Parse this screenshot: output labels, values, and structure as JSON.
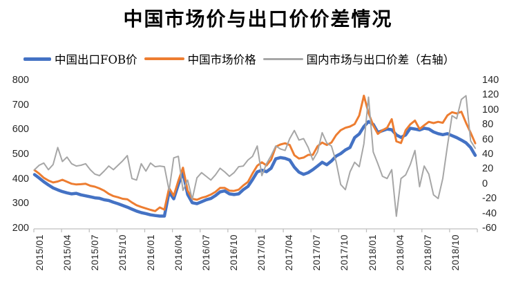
{
  "title": "中国市场价与出口价价差情况",
  "legend": {
    "items": [
      {
        "label": "中国出口FOB价",
        "color": "#4472C4",
        "swatch_w": 40,
        "swatch_h": 5
      },
      {
        "label": "中国市场价格",
        "color": "#ED7D31",
        "swatch_w": 58,
        "swatch_h": 3.5
      },
      {
        "label": "国内市场与出口价差（右轴）",
        "color": "#A6A6A6",
        "swatch_w": 58,
        "swatch_h": 3
      }
    ]
  },
  "colors": {
    "background": "#FFFFFF",
    "axis_line": "#BFBFBF",
    "tick_text": "#262626",
    "blue_series": "#4472C4",
    "orange_series": "#ED7D31",
    "gray_series": "#A6A6A6"
  },
  "chart_data": {
    "type": "line",
    "title": "中国市场价与出口价价差情况",
    "grid": "off",
    "legend_position": "top",
    "x_axis": {
      "start": "2015/01",
      "end": "2018/12",
      "sampling": "2 points per month, estimated from weekly series",
      "tick_labels": [
        "2015/01",
        "2015/04",
        "2015/07",
        "2015/10",
        "2016/01",
        "2016/04",
        "2016/07",
        "2016/10",
        "2017/01",
        "2017/04",
        "2017/07",
        "2017/10",
        "2018/01",
        "2018/04",
        "2018/07",
        "2018/10"
      ]
    },
    "y_axis_left": {
      "min": 200,
      "max": 800,
      "step": 100,
      "ticks": [
        800,
        700,
        600,
        500,
        400,
        300,
        200
      ]
    },
    "y_axis_right": {
      "min": -60,
      "max": 140,
      "step": 20,
      "ticks": [
        140,
        120,
        100,
        80,
        60,
        40,
        20,
        0,
        -20,
        -40,
        -60
      ]
    },
    "series": [
      {
        "name": "中国出口FOB价",
        "axis": "left",
        "color": "#4472C4",
        "stroke_width": 4.5,
        "values": [
          420,
          406,
          391,
          378,
          366,
          358,
          351,
          346,
          342,
          344,
          338,
          334,
          330,
          326,
          324,
          318,
          315,
          308,
          302,
          295,
          288,
          280,
          272,
          266,
          262,
          257,
          254,
          252,
          252,
          350,
          322,
          380,
          430,
          340,
          306,
          302,
          310,
          318,
          323,
          335,
          350,
          354,
          342,
          339,
          342,
          359,
          372,
          400,
          431,
          438,
          432,
          446,
          484,
          489,
          486,
          479,
          450,
          430,
          421,
          428,
          440,
          455,
          470,
          460,
          475,
          495,
          505,
          520,
          530,
          570,
          585,
          615,
          635,
          624,
          591,
          598,
          605,
          602,
          581,
          571,
          581,
          608,
          605,
          601,
          608,
          605,
          593,
          586,
          582,
          586,
          578,
          570,
          560,
          549,
          530,
          498
        ]
      },
      {
        "name": "中国市场价格",
        "axis": "left",
        "color": "#ED7D31",
        "stroke_width": 3,
        "values": [
          438,
          424,
          407,
          396,
          388,
          392,
          399,
          391,
          383,
          380,
          381,
          383,
          375,
          371,
          364,
          355,
          342,
          333,
          328,
          322,
          320,
          307,
          296,
          289,
          283,
          277,
          272,
          287,
          278,
          365,
          334,
          395,
          448,
          355,
          322,
          318,
          326,
          331,
          339,
          350,
          366,
          366,
          355,
          354,
          359,
          376,
          390,
          425,
          456,
          470,
          457,
          480,
          533,
          542,
          547,
          540,
          499,
          485,
          489,
          500,
          500,
          535,
          550,
          540,
          550,
          580,
          600,
          610,
          615,
          625,
          660,
          740,
          670,
          620,
          585,
          600,
          610,
          645,
          555,
          548,
          600,
          624,
          639,
          605,
          620,
          634,
          629,
          634,
          630,
          660,
          673,
          668,
          675,
          630,
          590,
          547
        ]
      },
      {
        "name": "国内市场与出口价差（右轴）",
        "axis": "right",
        "color": "#A6A6A6",
        "stroke_width": 2,
        "values": [
          20,
          26,
          29,
          20,
          27,
          50,
          31,
          37,
          28,
          25,
          26,
          28,
          20,
          14,
          12,
          18,
          25,
          20,
          26,
          32,
          39,
          8,
          6,
          28,
          18,
          29,
          24,
          25,
          24,
          -8,
          36,
          38,
          -8,
          6,
          -20,
          9,
          16,
          11,
          6,
          13,
          22,
          17,
          11,
          16,
          24,
          25,
          33,
          38,
          52,
          12,
          28,
          39,
          52,
          48,
          46,
          62,
          73,
          60,
          62,
          50,
          33,
          44,
          70,
          56,
          52,
          31,
          0,
          -7,
          17,
          30,
          24,
          55,
          118,
          44,
          28,
          11,
          8,
          20,
          -43,
          8,
          13,
          27,
          46,
          -3,
          25,
          14,
          -14,
          -19,
          8,
          52,
          93,
          89,
          115,
          120,
          59,
          49
        ]
      }
    ]
  }
}
